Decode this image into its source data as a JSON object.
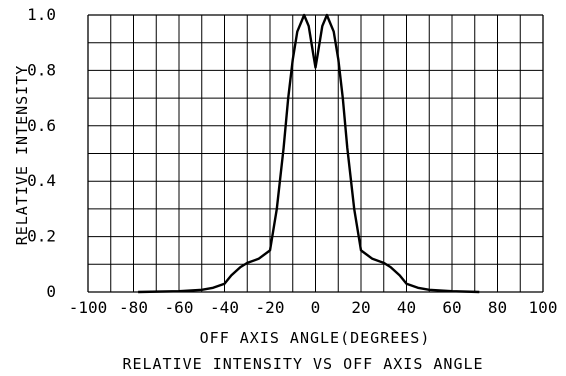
{
  "chart_data": {
    "type": "line",
    "title": "RELATIVE INTENSITY VS OFF AXIS ANGLE",
    "xlabel": "OFF AXIS ANGLE(DEGREES)",
    "ylabel": "RELATIVE INTENSITY",
    "xlim": [
      -100,
      100
    ],
    "ylim": [
      0,
      1.0
    ],
    "x_ticks": [
      -100,
      -80,
      -60,
      -40,
      -20,
      0,
      20,
      40,
      60,
      80,
      100
    ],
    "x_tick_labels": [
      "-100",
      "-80",
      "-60",
      "-40",
      "-20",
      "0",
      "20",
      "40",
      "60",
      "80",
      "100"
    ],
    "y_ticks": [
      0,
      0.2,
      0.4,
      0.6,
      0.8,
      1.0
    ],
    "y_tick_labels": [
      "0",
      "0.2",
      "0.4",
      "0.6",
      "0.8",
      "1.0"
    ],
    "grid": true,
    "grid_step_x": 10,
    "grid_step_y": 0.1,
    "series": [
      {
        "x": [
          -78,
          -60,
          -50,
          -45,
          -40,
          -37,
          -33,
          -30,
          -25,
          -20,
          -17,
          -14,
          -12,
          -10,
          -8,
          -6,
          -5,
          -3,
          -1,
          0,
          1,
          3,
          5,
          6,
          8,
          10,
          12,
          14,
          17,
          20,
          25,
          30,
          33,
          37,
          40,
          45,
          50,
          60,
          72
        ],
        "y": [
          0.0,
          0.003,
          0.008,
          0.015,
          0.03,
          0.06,
          0.09,
          0.105,
          0.12,
          0.15,
          0.3,
          0.52,
          0.7,
          0.84,
          0.94,
          0.98,
          1.0,
          0.96,
          0.86,
          0.81,
          0.86,
          0.96,
          1.0,
          0.98,
          0.94,
          0.84,
          0.7,
          0.52,
          0.3,
          0.15,
          0.12,
          0.105,
          0.09,
          0.06,
          0.03,
          0.015,
          0.008,
          0.003,
          0.0
        ]
      }
    ]
  }
}
